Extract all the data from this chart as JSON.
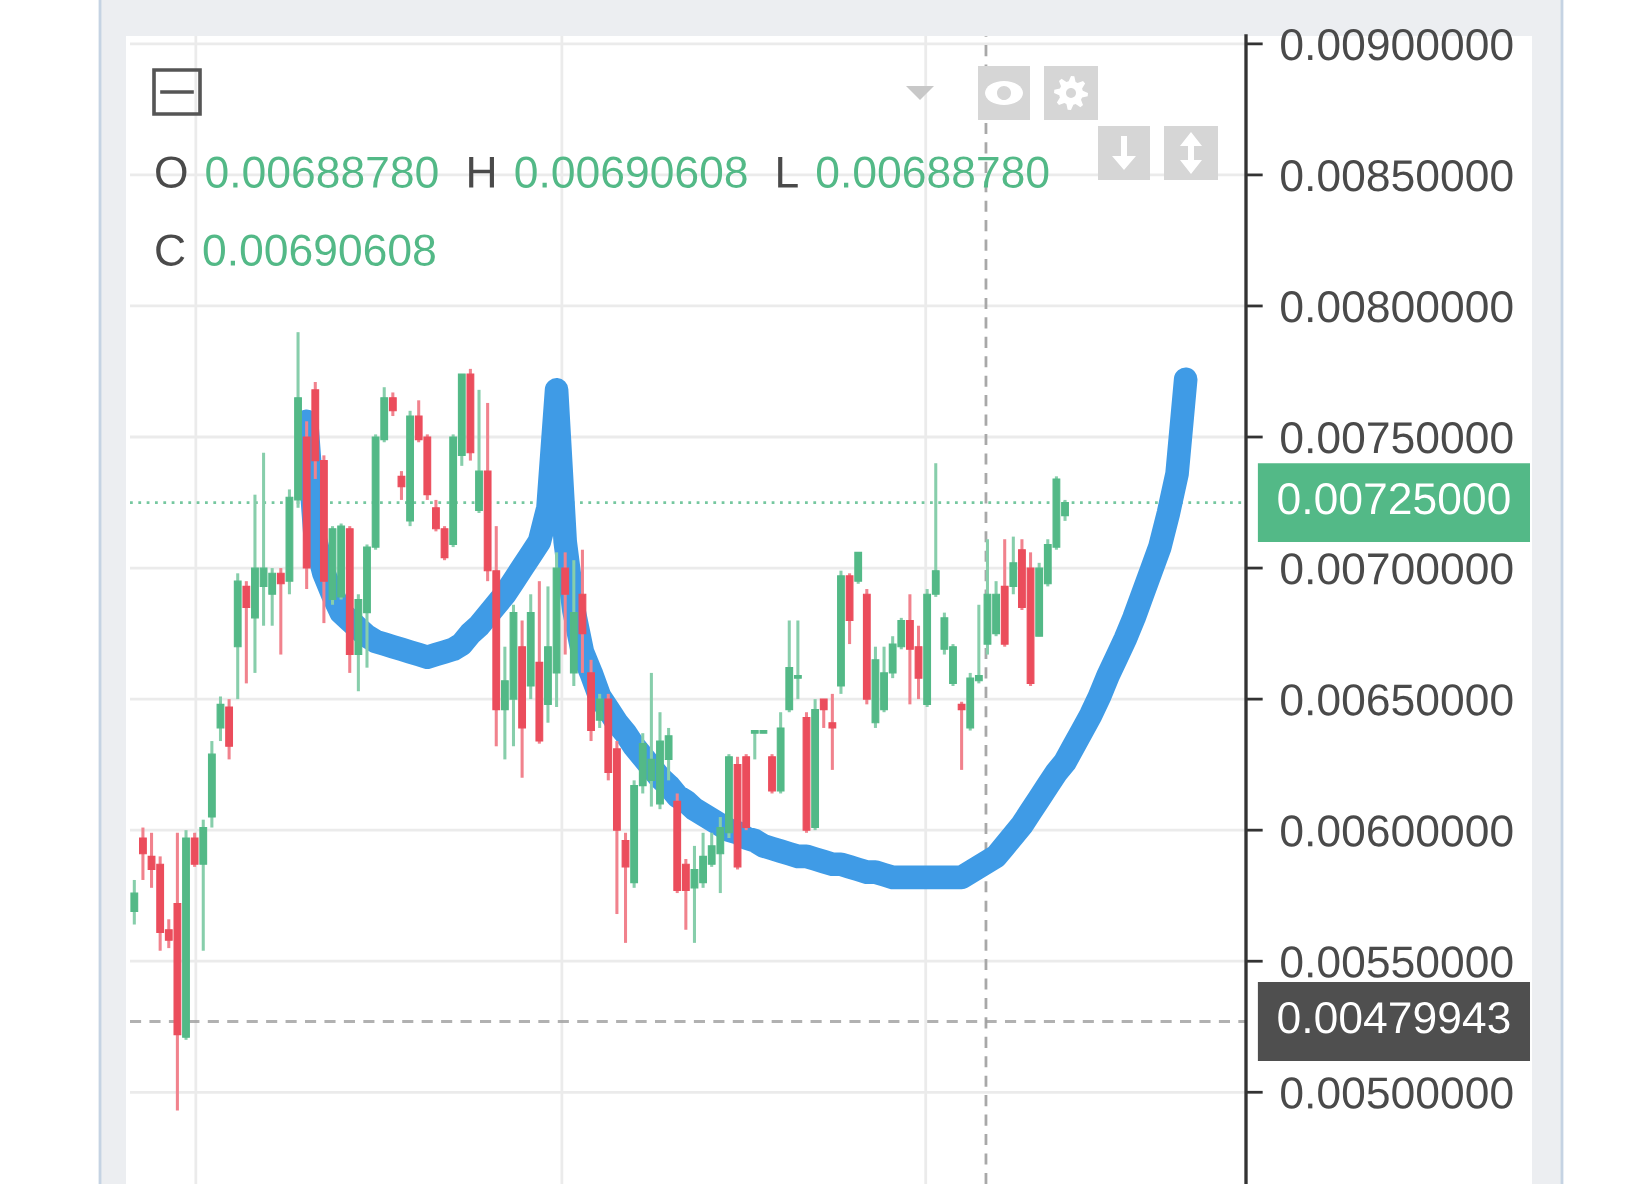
{
  "chart_data": {
    "type": "candlestick",
    "categories": [
      null,
      null,
      null,
      null,
      null,
      null,
      null,
      null,
      null,
      null,
      null,
      null,
      null,
      null,
      null,
      null,
      null,
      null,
      null,
      null,
      null,
      null,
      null,
      null,
      null,
      null,
      null,
      null,
      null,
      null,
      null,
      null,
      null,
      null,
      null,
      null,
      null,
      null,
      null,
      null,
      null,
      null,
      null,
      null,
      null,
      null,
      null,
      null,
      null,
      null,
      null,
      null,
      null,
      null,
      null,
      null,
      null,
      null,
      null,
      null,
      null,
      null,
      null,
      null,
      null,
      null,
      null,
      null,
      null,
      null,
      null,
      null,
      null,
      null,
      null,
      null,
      null,
      null,
      null,
      null,
      null,
      null,
      null,
      null,
      null,
      null,
      null,
      null,
      null,
      null,
      null,
      null,
      null,
      null,
      null,
      null,
      null,
      null,
      null,
      null,
      null,
      null,
      null,
      null,
      null,
      null,
      null,
      null,
      null,
      null,
      null,
      null,
      null,
      null,
      null,
      null,
      null,
      null,
      null,
      null,
      null,
      null,
      null
    ],
    "ohlc": [
      [
        0.00569,
        0.00581,
        0.00564,
        0.00576
      ],
      [
        0.00597,
        0.00601,
        0.00581,
        0.00591
      ],
      [
        0.0059,
        0.00599,
        0.00578,
        0.00585
      ],
      [
        0.00587,
        0.0059,
        0.00554,
        0.00561
      ],
      [
        0.00562,
        0.00566,
        0.00555,
        0.00558
      ],
      [
        0.00572,
        0.00599,
        0.00493,
        0.00522
      ],
      [
        0.00521,
        0.006,
        0.0052,
        0.00597
      ],
      [
        0.00597,
        0.00599,
        0.00586,
        0.00587
      ],
      [
        0.00587,
        0.00604,
        0.00554,
        0.00601
      ],
      [
        0.00605,
        0.00634,
        0.00601,
        0.00629
      ],
      [
        0.00639,
        0.00651,
        0.00634,
        0.00648
      ],
      [
        0.00647,
        0.0065,
        0.00627,
        0.00632
      ],
      [
        0.0067,
        0.00698,
        0.0065,
        0.00695
      ],
      [
        0.00693,
        0.00695,
        0.00656,
        0.00685
      ],
      [
        0.00681,
        0.00728,
        0.0066,
        0.007
      ],
      [
        0.00693,
        0.00744,
        0.00678,
        0.007
      ],
      [
        0.0069,
        0.007,
        0.00678,
        0.00698
      ],
      [
        0.00698,
        0.007,
        0.00667,
        0.00694
      ],
      [
        0.00695,
        0.0073,
        0.0069,
        0.00727
      ],
      [
        0.00726,
        0.0079,
        0.00723,
        0.00765
      ],
      [
        0.0075,
        0.00756,
        0.00692,
        0.007
      ],
      [
        0.00768,
        0.00771,
        0.00734,
        0.00741
      ],
      [
        0.00741,
        0.00743,
        0.00679,
        0.00695
      ],
      [
        0.00688,
        0.00716,
        0.00686,
        0.00715
      ],
      [
        0.00689,
        0.00717,
        0.00688,
        0.00716
      ],
      [
        0.00715,
        0.00716,
        0.0066,
        0.00667
      ],
      [
        0.00667,
        0.0069,
        0.00653,
        0.00688
      ],
      [
        0.00683,
        0.00709,
        0.00662,
        0.00708
      ],
      [
        0.00708,
        0.00751,
        0.00707,
        0.0075
      ],
      [
        0.00749,
        0.00769,
        0.00748,
        0.00765
      ],
      [
        0.00765,
        0.00767,
        0.00758,
        0.0076
      ],
      [
        0.00735,
        0.00737,
        0.00726,
        0.00731
      ],
      [
        0.00718,
        0.0076,
        0.00716,
        0.00758
      ],
      [
        0.00758,
        0.00764,
        0.00748,
        0.00749
      ],
      [
        0.0075,
        0.00751,
        0.00726,
        0.00728
      ],
      [
        0.00723,
        0.00726,
        0.00714,
        0.00715
      ],
      [
        0.00715,
        0.00716,
        0.00703,
        0.00704
      ],
      [
        0.00709,
        0.00751,
        0.00708,
        0.0075
      ],
      [
        0.00743,
        0.00774,
        0.00739,
        0.00774
      ],
      [
        0.00774,
        0.00776,
        0.00741,
        0.00744
      ],
      [
        0.00722,
        0.00768,
        0.00721,
        0.00737
      ],
      [
        0.00737,
        0.00763,
        0.00695,
        0.00699
      ],
      [
        0.00699,
        0.00716,
        0.00632,
        0.00646
      ],
      [
        0.00646,
        0.0067,
        0.00627,
        0.00657
      ],
      [
        0.0065,
        0.00686,
        0.00632,
        0.00683
      ],
      [
        0.0067,
        0.0068,
        0.0062,
        0.00639
      ],
      [
        0.00655,
        0.0069,
        0.0065,
        0.00683
      ],
      [
        0.00664,
        0.00695,
        0.00633,
        0.00634
      ],
      [
        0.00648,
        0.00693,
        0.00641,
        0.0067
      ],
      [
        0.0066,
        0.00706,
        0.00647,
        0.007
      ],
      [
        0.007,
        0.00706,
        0.00667,
        0.0069
      ],
      [
        0.0066,
        0.00703,
        0.00655,
        0.00683
      ],
      [
        0.0069,
        0.00707,
        0.0066,
        0.00675
      ],
      [
        0.0066,
        0.00665,
        0.00634,
        0.00638
      ],
      [
        0.00642,
        0.00652,
        0.00639,
        0.0065
      ],
      [
        0.0065,
        0.00652,
        0.00619,
        0.00622
      ],
      [
        0.00631,
        0.00634,
        0.00568,
        0.006
      ],
      [
        0.00596,
        0.00599,
        0.00557,
        0.00586
      ],
      [
        0.0058,
        0.00619,
        0.00578,
        0.00617
      ],
      [
        0.00617,
        0.00637,
        0.00614,
        0.00633
      ],
      [
        0.00619,
        0.0066,
        0.00609,
        0.00627
      ],
      [
        0.0061,
        0.00645,
        0.00608,
        0.00634
      ],
      [
        0.00627,
        0.00639,
        0.00619,
        0.00636
      ],
      [
        0.00611,
        0.00614,
        0.00576,
        0.00577
      ],
      [
        0.00587,
        0.00589,
        0.00562,
        0.00577
      ],
      [
        0.00578,
        0.00594,
        0.00557,
        0.00585
      ],
      [
        0.0058,
        0.00599,
        0.00578,
        0.0059
      ],
      [
        0.00587,
        0.00599,
        0.00586,
        0.00594
      ],
      [
        0.00591,
        0.00605,
        0.00576,
        0.00601
      ],
      [
        0.00599,
        0.00629,
        0.00597,
        0.00628
      ],
      [
        0.00625,
        0.00628,
        0.00585,
        0.00586
      ],
      [
        0.00628,
        0.00629,
        0.006,
        0.00601
      ],
      [
        0.00637,
        0.00638,
        0.00627,
        0.00638
      ],
      [
        0.00637,
        0.00638,
        0.00637,
        0.00638
      ],
      [
        0.00628,
        0.00629,
        0.00614,
        0.00615
      ],
      [
        0.00615,
        0.00645,
        0.00614,
        0.00639
      ],
      [
        0.00646,
        0.0068,
        0.00645,
        0.00662
      ],
      [
        0.00658,
        0.0068,
        0.0065,
        0.00659
      ],
      [
        0.00643,
        0.00645,
        0.00599,
        0.006
      ],
      [
        0.00601,
        0.0065,
        0.006,
        0.00646
      ],
      [
        0.0065,
        0.0065,
        0.00639,
        0.00646
      ],
      [
        0.00641,
        0.00652,
        0.00623,
        0.00639
      ],
      [
        0.00655,
        0.00699,
        0.00652,
        0.00697
      ],
      [
        0.00697,
        0.00698,
        0.00671,
        0.0068
      ],
      [
        0.00695,
        0.00706,
        0.00694,
        0.00706
      ],
      [
        0.0069,
        0.00692,
        0.00648,
        0.0065
      ],
      [
        0.00641,
        0.0067,
        0.00639,
        0.00665
      ],
      [
        0.00646,
        0.0067,
        0.00645,
        0.0066
      ],
      [
        0.0066,
        0.00674,
        0.00658,
        0.00671
      ],
      [
        0.0067,
        0.00681,
        0.00669,
        0.0068
      ],
      [
        0.0068,
        0.0069,
        0.00648,
        0.00669
      ],
      [
        0.0067,
        0.00678,
        0.0065,
        0.00658
      ],
      [
        0.00648,
        0.00692,
        0.00647,
        0.0069
      ],
      [
        0.0069,
        0.0074,
        0.00689,
        0.00699
      ],
      [
        0.00669,
        0.00683,
        0.00667,
        0.00681
      ],
      [
        0.00656,
        0.00671,
        0.00655,
        0.0067
      ],
      [
        0.00648,
        0.00649,
        0.00623,
        0.00646
      ],
      [
        0.00639,
        0.0066,
        0.00638,
        0.00658
      ],
      [
        0.00657,
        0.00686,
        0.00656,
        0.00659
      ],
      [
        0.00671,
        0.00711,
        0.00667,
        0.0069
      ],
      [
        0.00675,
        0.00695,
        0.00674,
        0.0069
      ],
      [
        0.00693,
        0.00711,
        0.0067,
        0.00671
      ],
      [
        0.00693,
        0.00712,
        0.0069,
        0.00702
      ],
      [
        0.00707,
        0.00711,
        0.00684,
        0.00685
      ],
      [
        0.007,
        0.00706,
        0.00655,
        0.00656
      ],
      [
        0.00674,
        0.00702,
        0.00674,
        0.007
      ],
      [
        0.00694,
        0.00711,
        0.00693,
        0.00709
      ],
      [
        0.00708,
        0.00735,
        0.00707,
        0.00734
      ],
      [
        0.0072,
        0.00726,
        0.00718,
        0.00725
      ],
      null,
      null,
      null,
      null,
      null,
      null,
      null,
      null,
      null,
      null,
      null,
      null,
      null,
      null
    ],
    "colors": [
      "#53b987",
      "#eb4d5c",
      "#eb4d5c",
      "#eb4d5c",
      "#eb4d5c",
      "#eb4d5c",
      "#53b987",
      "#eb4d5c",
      "#53b987",
      "#53b987",
      "#53b987",
      "#eb4d5c",
      "#53b987",
      "#eb4d5c",
      "#53b987",
      "#53b987",
      "#53b987",
      "#eb4d5c",
      "#53b987",
      "#53b987",
      "#eb4d5c",
      "#eb4d5c",
      "#eb4d5c",
      "#53b987",
      "#53b987",
      "#eb4d5c",
      "#53b987",
      "#53b987",
      "#53b987",
      "#53b987",
      "#eb4d5c",
      "#eb4d5c",
      "#53b987",
      "#eb4d5c",
      "#eb4d5c",
      "#eb4d5c",
      "#eb4d5c",
      "#53b987",
      "#53b987",
      "#eb4d5c",
      "#53b987",
      "#eb4d5c",
      "#eb4d5c",
      "#53b987",
      "#53b987",
      "#eb4d5c",
      "#53b987",
      "#eb4d5c",
      "#53b987",
      "#53b987",
      "#eb4d5c",
      "#53b987",
      "#eb4d5c",
      "#eb4d5c",
      "#53b987",
      "#eb4d5c",
      "#eb4d5c",
      "#eb4d5c",
      "#53b987",
      "#53b987",
      "#53b987",
      "#53b987",
      "#53b987",
      "#eb4d5c",
      "#eb4d5c",
      "#53b987",
      "#53b987",
      "#53b987",
      "#53b987",
      "#53b987",
      "#eb4d5c",
      "#eb4d5c",
      "#53b987",
      "#53b987",
      "#eb4d5c",
      "#53b987",
      "#53b987",
      "#53b987",
      "#eb4d5c",
      "#53b987",
      "#eb4d5c",
      "#eb4d5c",
      "#53b987",
      "#eb4d5c",
      "#53b987",
      "#eb4d5c",
      "#53b987",
      "#53b987",
      "#53b987",
      "#53b987",
      "#eb4d5c",
      "#eb4d5c",
      "#53b987",
      "#53b987",
      "#53b987",
      "#53b987",
      "#eb4d5c",
      "#53b987",
      "#53b987",
      "#53b987",
      "#53b987",
      "#eb4d5c",
      "#53b987",
      "#eb4d5c",
      "#eb4d5c",
      "#53b987",
      "#53b987",
      "#53b987",
      "#53b987",
      null,
      null,
      null,
      null,
      null,
      null,
      null,
      null,
      null,
      null,
      null,
      null,
      null,
      null
    ],
    "series": [
      {
        "type": "line",
        "color": "#3f9be6",
        "values": [
          null,
          null,
          null,
          null,
          null,
          null,
          null,
          null,
          null,
          null,
          null,
          null,
          null,
          null,
          null,
          null,
          null,
          null,
          null,
          null,
          0.00756,
          0.00711,
          0.00698,
          0.0069,
          0.00683,
          0.0068,
          0.00677,
          0.00674,
          0.00672,
          0.00671,
          0.0067,
          0.00669,
          0.00668,
          0.00667,
          0.00666,
          0.00667,
          0.00668,
          0.00669,
          0.00671,
          0.00675,
          0.00678,
          0.00682,
          0.00686,
          0.0069,
          0.00695,
          0.007,
          0.00705,
          0.0071,
          0.00723,
          0.00768,
          0.0071,
          0.00684,
          0.00668,
          0.0066,
          0.00651,
          0.00646,
          0.00641,
          0.00637,
          0.00632,
          0.00628,
          0.00624,
          0.0062,
          0.00617,
          0.00613,
          0.00611,
          0.00608,
          0.00606,
          0.00604,
          0.00602,
          0.006,
          0.00599,
          0.00597,
          0.00596,
          0.00594,
          0.00593,
          0.00592,
          0.00591,
          0.0059,
          0.0059,
          0.00589,
          0.00588,
          0.00587,
          0.00587,
          0.00586,
          0.00585,
          0.00584,
          0.00584,
          0.00583,
          0.00582,
          0.00582,
          0.00582,
          0.00582,
          0.00582,
          0.00582,
          0.00582,
          0.00582,
          0.00582,
          0.00584,
          0.00586,
          0.00588,
          0.0059,
          0.00594,
          0.00598,
          0.00602,
          0.00607,
          0.00612,
          0.00617,
          0.00622,
          0.00626,
          0.00632,
          0.00638,
          0.00644,
          0.00651,
          0.00659,
          0.00666,
          0.00673,
          0.00681,
          0.0069,
          0.00699,
          0.00708,
          0.00721,
          0.00736,
          0.00772
        ]
      }
    ],
    "ylim": [
      0.00465,
      0.00903
    ],
    "yticks": [
      {
        "value": 0.005,
        "label": "0.00500000"
      },
      {
        "value": 0.0055,
        "label": "0.00550000"
      },
      {
        "value": 0.006,
        "label": "0.00600000"
      },
      {
        "value": 0.0065,
        "label": "0.00650000"
      },
      {
        "value": 0.007,
        "label": "0.00700000"
      },
      {
        "value": 0.0075,
        "label": "0.00750000"
      },
      {
        "value": 0.008,
        "label": "0.00800000"
      },
      {
        "value": 0.0085,
        "label": "0.00850000"
      },
      {
        "value": 0.009,
        "label": "0.00900000"
      }
    ],
    "grid": "y",
    "tick_labels": "y",
    "ref_lines": [
      {
        "axis": "y",
        "value": 0.00725,
        "label": "0.00725000",
        "color": "#53b987",
        "line_style": "dotted"
      },
      {
        "axis": "y",
        "value": 0.00527,
        "color": "#9e9e9e",
        "line_style": "dashed"
      }
    ],
    "annotations": [
      "O 0.00688780",
      "H 0.00690608",
      "L 0.00688780",
      "C 0.00690608",
      "0.00479943"
    ]
  }
}
